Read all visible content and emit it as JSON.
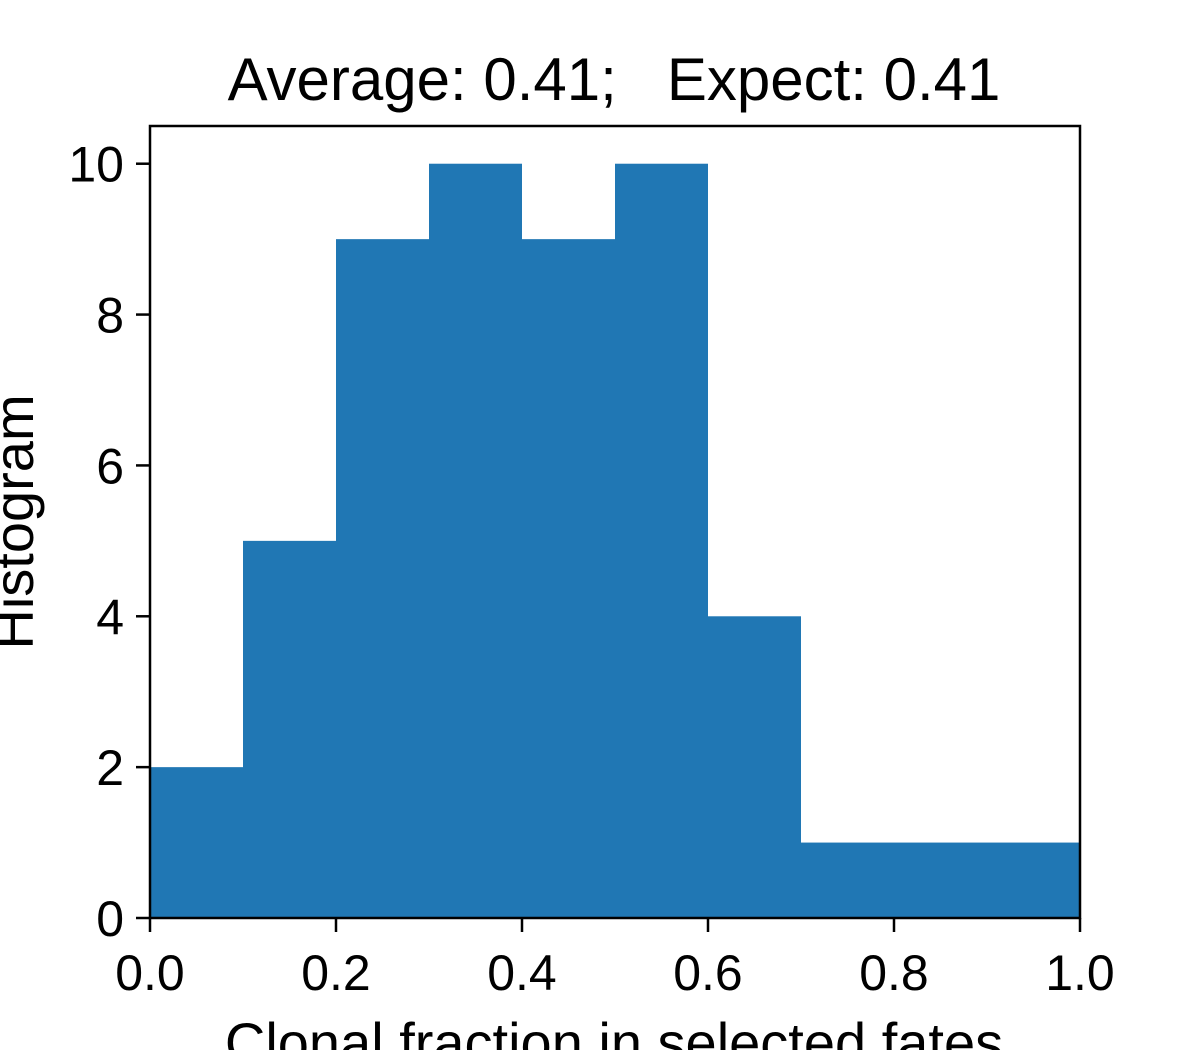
{
  "chart_data": {
    "type": "bar",
    "title": "Average: 0.41;   Expect: 0.41",
    "xlabel": "Clonal fraction in selected fates",
    "ylabel": "Histogram",
    "bins": [
      {
        "start": 0.0,
        "end": 0.1,
        "count": 2
      },
      {
        "start": 0.1,
        "end": 0.2,
        "count": 5
      },
      {
        "start": 0.2,
        "end": 0.3,
        "count": 9
      },
      {
        "start": 0.3,
        "end": 0.4,
        "count": 10
      },
      {
        "start": 0.4,
        "end": 0.5,
        "count": 9
      },
      {
        "start": 0.5,
        "end": 0.6,
        "count": 10
      },
      {
        "start": 0.6,
        "end": 0.7,
        "count": 4
      },
      {
        "start": 0.7,
        "end": 0.8,
        "count": 1
      },
      {
        "start": 0.8,
        "end": 0.9,
        "count": 1
      },
      {
        "start": 0.9,
        "end": 1.0,
        "count": 1
      }
    ],
    "xlim": [
      0.0,
      1.0
    ],
    "ylim": [
      0,
      10.5
    ],
    "xticks": [
      "0.0",
      "0.2",
      "0.4",
      "0.6",
      "0.8",
      "1.0"
    ],
    "yticks": [
      "0",
      "2",
      "4",
      "6",
      "8",
      "10"
    ],
    "grid": false,
    "bar_color": "#2077b4"
  }
}
